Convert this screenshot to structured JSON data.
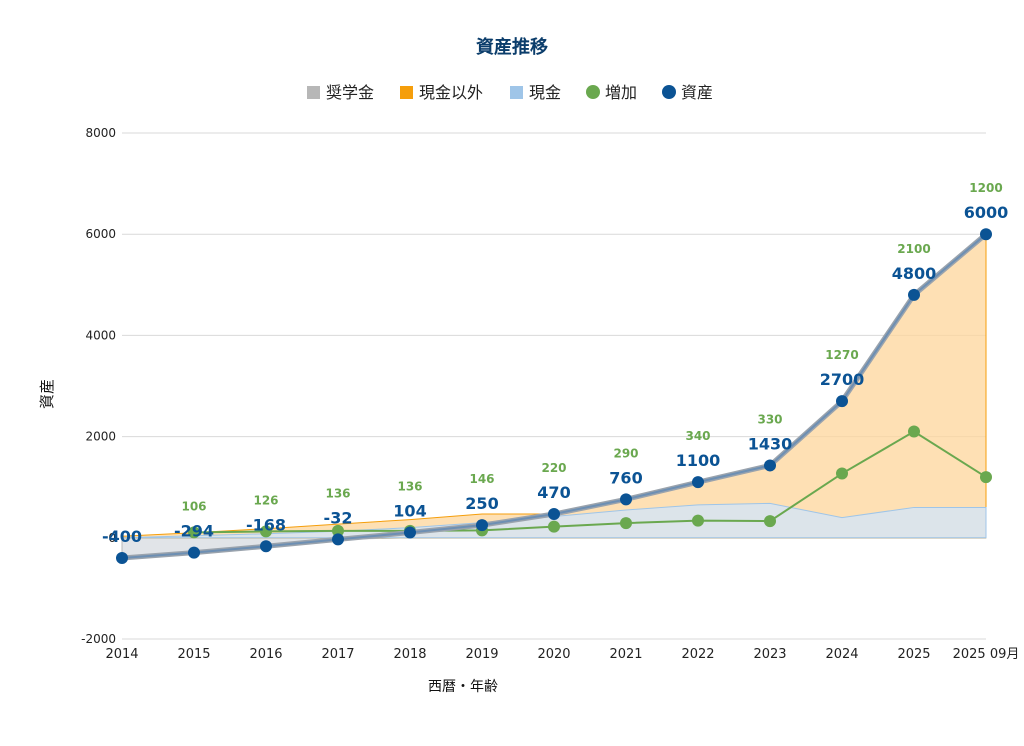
{
  "chart_data": {
    "type": "line",
    "title": "資産推移",
    "xlabel": "西暦・年齢",
    "ylabel": "資産",
    "categories": [
      "2014",
      "2015",
      "2016",
      "2017",
      "2018",
      "2019",
      "2020",
      "2021",
      "2022",
      "2023",
      "2024",
      "2025",
      "2025 09月"
    ],
    "ylim": [
      -2000,
      8000
    ],
    "yticks": [
      -2000,
      0,
      2000,
      4000,
      6000,
      8000
    ],
    "grid": true,
    "legend_position": "top",
    "series": [
      {
        "name": "奨学金",
        "kind": "area",
        "color": "#b7b7b7",
        "values": [
          -400,
          -294,
          -168,
          -32,
          0,
          0,
          0,
          0,
          0,
          0,
          0,
          0,
          0
        ]
      },
      {
        "name": "現金以外",
        "kind": "area",
        "color": "#f59e0b",
        "values": [
          30,
          100,
          180,
          270,
          360,
          470,
          470,
          760,
          1100,
          1430,
          2700,
          4800,
          6000
        ]
      },
      {
        "name": "現金",
        "kind": "area",
        "color": "#9fc5e8",
        "values": [
          0,
          40,
          80,
          130,
          200,
          300,
          420,
          550,
          650,
          680,
          400,
          600,
          600
        ]
      },
      {
        "name": "増加",
        "kind": "line",
        "color": "#6aa84f",
        "values": [
          null,
          106,
          126,
          136,
          136,
          146,
          220,
          290,
          340,
          330,
          1270,
          2100,
          1200
        ],
        "labels": [
          "",
          "106",
          "126",
          "136",
          "136",
          "146",
          "220",
          "290",
          "340",
          "330",
          "1270",
          "2100",
          "1200"
        ]
      },
      {
        "name": "資産",
        "kind": "line",
        "color": "#0b5394",
        "values": [
          -400,
          -294,
          -168,
          -32,
          104,
          250,
          470,
          760,
          1100,
          1430,
          2700,
          4800,
          6000
        ],
        "labels": [
          "-400",
          "-294",
          "-168",
          "-32",
          "104",
          "250",
          "470",
          "760",
          "1100",
          "1430",
          "2700",
          "4800",
          "6000"
        ]
      }
    ]
  }
}
